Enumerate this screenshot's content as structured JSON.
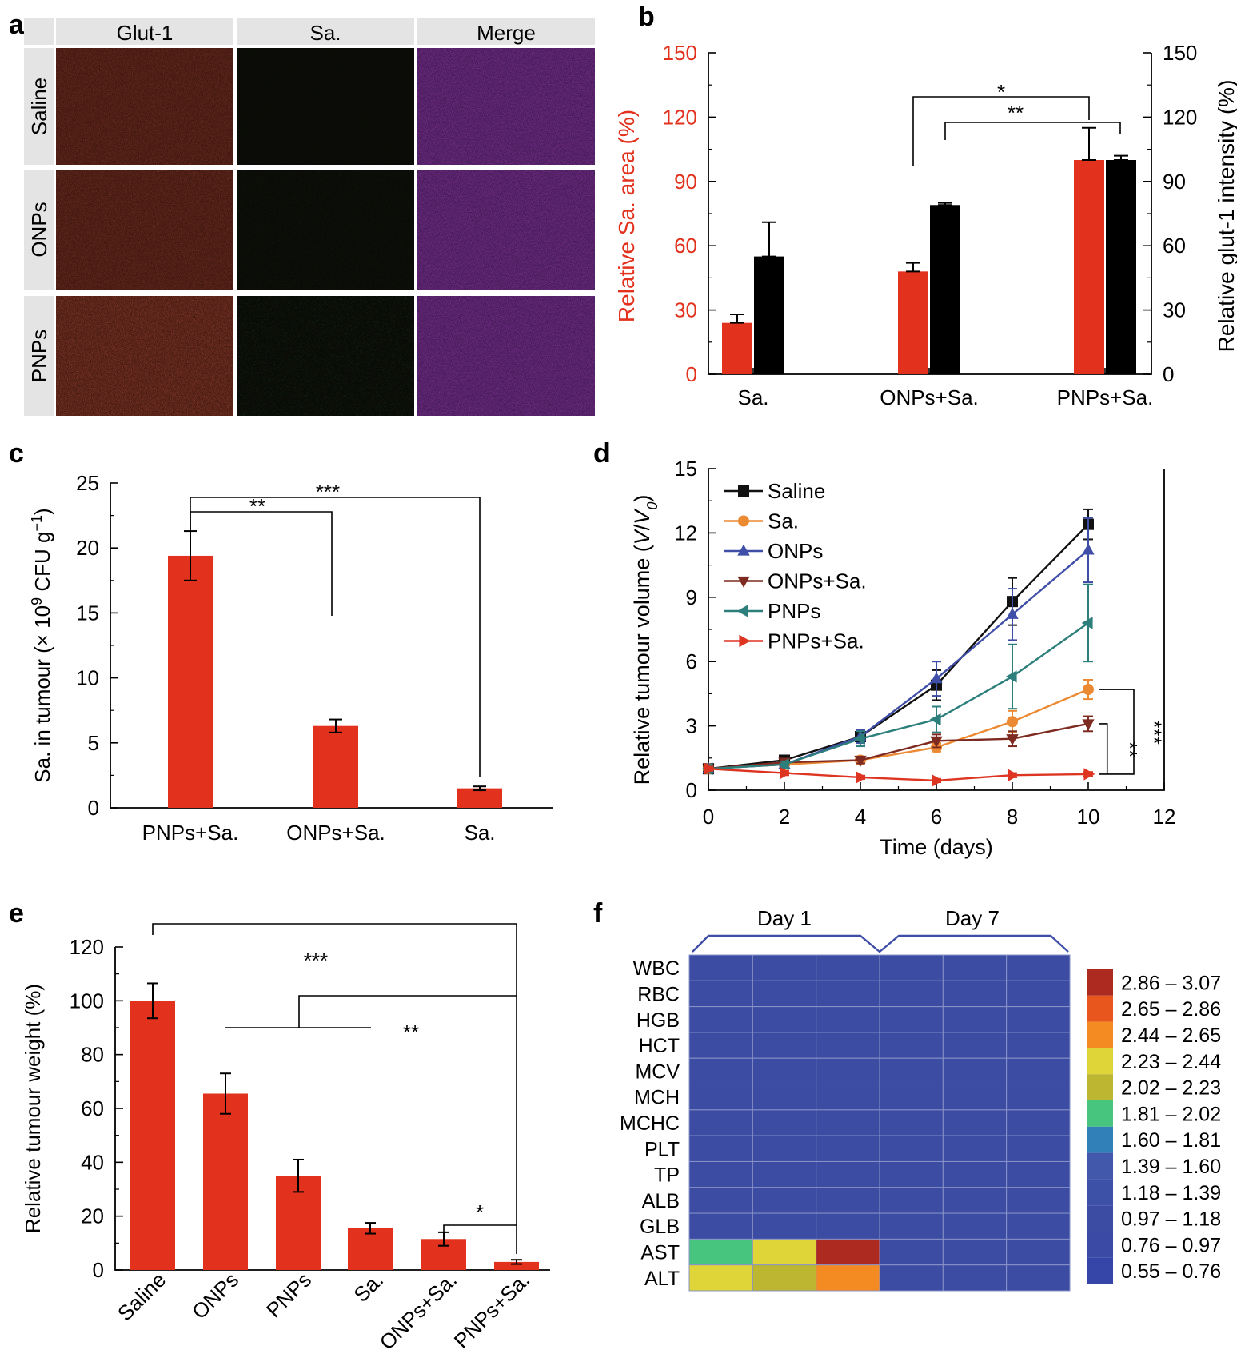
{
  "panel_letters": [
    "a",
    "b",
    "c",
    "d",
    "e",
    "f"
  ],
  "colors": {
    "red": "#e2311d",
    "black": "#000000",
    "saline": "#111111",
    "sa": "#ec8a33",
    "onps": "#3f4fa7",
    "onps_sa": "#7e2a20",
    "pnps": "#2d7f7c",
    "pnps_sa": "#dd3522",
    "heat_base": "#3b4ca2"
  },
  "panel_a": {
    "col_headers": [
      "Glut-1",
      "Sa.",
      "Merge"
    ],
    "row_headers": [
      "Saline",
      "ONPs",
      "PNPs"
    ]
  },
  "chart_data": [
    {
      "panel": "b",
      "type": "bar",
      "categories": [
        "Sa.",
        "ONPs+Sa.",
        "PNPs+Sa."
      ],
      "ylabel": "Relative Sa. area (%)",
      "y2label": "Relative glut-1 intensity  (%)",
      "ylim": [
        0,
        150
      ],
      "yticks": [
        0,
        30,
        60,
        90,
        120,
        150
      ],
      "series": [
        {
          "name": "Relative Sa. area",
          "axis": "left",
          "color": "#e2311d",
          "values": [
            24,
            48,
            100
          ],
          "errors": [
            4,
            4,
            15
          ]
        },
        {
          "name": "Relative glut-1 intensity",
          "axis": "right",
          "color": "#000000",
          "values": [
            55,
            79,
            100
          ],
          "errors": [
            16,
            1,
            2
          ]
        }
      ],
      "annotations": [
        "*",
        "**"
      ]
    },
    {
      "panel": "c",
      "type": "bar",
      "categories": [
        "PNPs+Sa.",
        "ONPs+Sa.",
        "Sa."
      ],
      "values": [
        19.4,
        6.3,
        1.5
      ],
      "errors": [
        1.9,
        0.5,
        0.15
      ],
      "ylabel_parts": [
        "Sa. in tumour (× 10",
        "9",
        " CFU g",
        "−1",
        ")"
      ],
      "ylim": [
        0,
        25
      ],
      "yticks": [
        0,
        5,
        10,
        15,
        20,
        25
      ],
      "annotations": [
        "**",
        "***"
      ]
    },
    {
      "panel": "d",
      "type": "line",
      "x": [
        0,
        2,
        4,
        6,
        8,
        10
      ],
      "xlabel": "Time (days)",
      "ylabel_parts": [
        "Relative tumour volume (",
        "V",
        "/",
        "V",
        "0",
        ")"
      ],
      "xlim": [
        0,
        12
      ],
      "ylim": [
        0,
        15
      ],
      "xticks": [
        0,
        2,
        4,
        6,
        8,
        10,
        12
      ],
      "yticks": [
        0,
        3,
        6,
        9,
        12,
        15
      ],
      "series": [
        {
          "name": "Saline",
          "marker": "square",
          "values": [
            1,
            1.4,
            2.5,
            4.9,
            8.8,
            12.4
          ],
          "errors": [
            0.1,
            0.15,
            0.3,
            0.7,
            1.1,
            0.7
          ]
        },
        {
          "name": "Sa.",
          "marker": "circle",
          "values": [
            1,
            1.2,
            1.4,
            2.0,
            3.2,
            4.7
          ],
          "errors": [
            0.1,
            0.1,
            0.15,
            0.2,
            0.5,
            0.45
          ]
        },
        {
          "name": "ONPs",
          "marker": "triangle-up",
          "values": [
            1,
            1.2,
            2.5,
            5.2,
            8.2,
            11.2
          ],
          "errors": [
            0.1,
            0.15,
            0.3,
            0.8,
            1.2,
            1.5
          ]
        },
        {
          "name": "ONPs+Sa.",
          "marker": "triangle-down",
          "values": [
            1,
            1.3,
            1.4,
            2.3,
            2.4,
            3.1
          ],
          "errors": [
            0.1,
            0.1,
            0.15,
            0.3,
            0.35,
            0.35
          ]
        },
        {
          "name": "PNPs",
          "marker": "triangle-left",
          "values": [
            1,
            1.2,
            2.4,
            3.3,
            5.3,
            7.8
          ],
          "errors": [
            0.1,
            0.15,
            0.35,
            0.6,
            1.5,
            1.8
          ]
        },
        {
          "name": "PNPs+Sa.",
          "marker": "triangle-right",
          "values": [
            1,
            0.8,
            0.6,
            0.45,
            0.7,
            0.75
          ],
          "errors": [
            0.1,
            0.1,
            0.08,
            0.08,
            0.1,
            0.1
          ]
        }
      ],
      "annotations": [
        "***",
        "**"
      ]
    },
    {
      "panel": "e",
      "type": "bar",
      "categories": [
        "Saline",
        "ONPs",
        "PNPs",
        "Sa.",
        "ONPs+Sa.",
        "PNPs+Sa."
      ],
      "values": [
        100,
        65.5,
        35,
        15.5,
        11.5,
        3
      ],
      "errors": [
        6.5,
        7.5,
        6,
        2,
        2.5,
        0.8
      ],
      "ylabel": "Relative tumour weight (%)",
      "ylim": [
        0,
        120
      ],
      "yticks": [
        0,
        20,
        40,
        60,
        80,
        100,
        120
      ],
      "annotations": [
        "***",
        "**",
        "*"
      ]
    },
    {
      "panel": "f",
      "type": "heatmap",
      "groups": [
        "Day 1",
        "Day 7"
      ],
      "rows": [
        "WBC",
        "RBC",
        "HGB",
        "HCT",
        "MCV",
        "MCH",
        "MCHC",
        "PLT",
        "TP",
        "ALB",
        "GLB",
        "AST",
        "ALT"
      ],
      "columns": 6,
      "values": [
        [
          0.97,
          0.97,
          0.97,
          0.97,
          0.97,
          0.97
        ],
        [
          0.97,
          0.97,
          0.97,
          0.97,
          0.97,
          0.97
        ],
        [
          0.97,
          0.97,
          0.97,
          0.97,
          0.97,
          0.97
        ],
        [
          0.97,
          0.97,
          0.97,
          0.97,
          0.97,
          0.97
        ],
        [
          0.97,
          0.97,
          0.97,
          0.97,
          0.97,
          0.97
        ],
        [
          0.97,
          0.97,
          0.97,
          0.97,
          0.97,
          0.97
        ],
        [
          0.97,
          0.97,
          0.97,
          0.97,
          0.97,
          0.97
        ],
        [
          0.97,
          0.97,
          0.97,
          0.97,
          0.97,
          0.97
        ],
        [
          0.97,
          0.97,
          0.97,
          0.97,
          0.97,
          0.97
        ],
        [
          0.97,
          0.97,
          0.97,
          0.97,
          0.97,
          0.97
        ],
        [
          0.97,
          0.97,
          0.97,
          0.97,
          0.97,
          0.97
        ],
        [
          1.9,
          2.3,
          3.0,
          0.97,
          0.97,
          0.97
        ],
        [
          2.3,
          2.1,
          2.5,
          0.97,
          0.97,
          0.97
        ]
      ],
      "legend": [
        {
          "label": "2.86 – 3.07",
          "color": "#ad2a20"
        },
        {
          "label": "2.65 – 2.86",
          "color": "#e8561d"
        },
        {
          "label": "2.44 – 2.65",
          "color": "#f48a22"
        },
        {
          "label": "2.23 – 2.44",
          "color": "#dfd438"
        },
        {
          "label": "2.02 – 2.23",
          "color": "#bdb630"
        },
        {
          "label": "1.81 – 2.02",
          "color": "#47c57e"
        },
        {
          "label": "1.60 – 1.81",
          "color": "#3180b8"
        },
        {
          "label": "1.39 – 1.60",
          "color": "#4259ab"
        },
        {
          "label": "1.18 – 1.39",
          "color": "#3d52a7"
        },
        {
          "label": "0.97 – 1.18",
          "color": "#3b4ca2"
        },
        {
          "label": "0.76 – 0.97",
          "color": "#3a4aa5"
        },
        {
          "label": "0.55 – 0.76",
          "color": "#3546a8"
        }
      ]
    }
  ]
}
